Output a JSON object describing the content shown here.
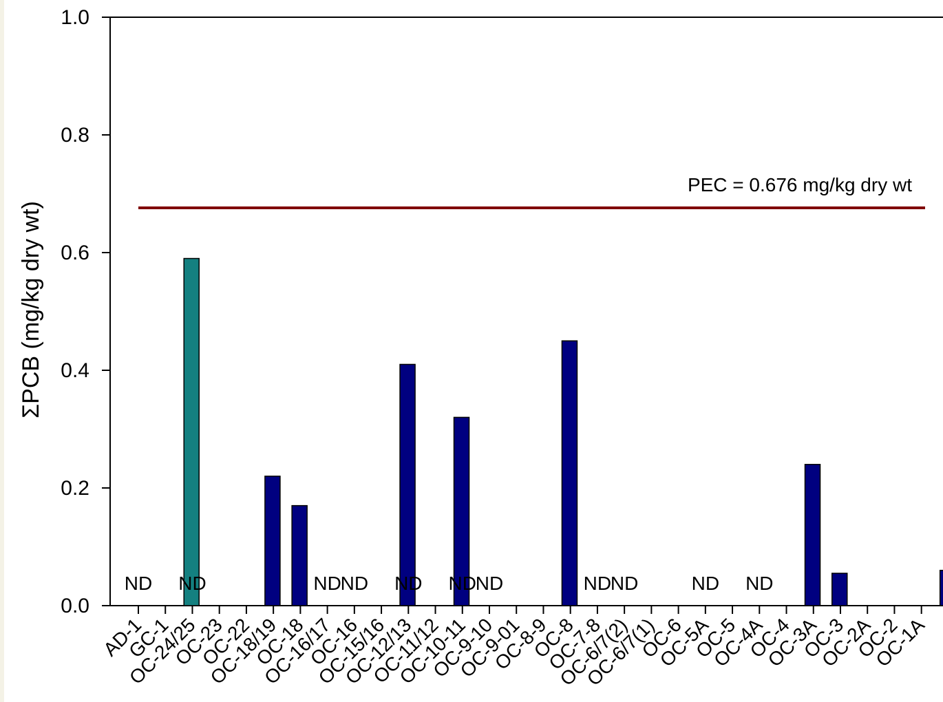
{
  "chart_data": {
    "type": "bar",
    "ylabel": "ΣPCB (mg/kg dry wt)",
    "ylim": [
      0,
      1.0
    ],
    "yticks": [
      "0.0",
      "0.2",
      "0.4",
      "0.6",
      "0.8",
      "1.0"
    ],
    "categories": [
      "AD-1",
      "GC-1",
      "OC-24/25",
      "OC-23",
      "OC-22",
      "OC-18/19",
      "OC-18",
      "OC-16/17",
      "OC-16",
      "OC-15/16",
      "OC-12/13",
      "OC-11/12",
      "OC-10-11",
      "OC-9-10",
      "OC-9-01",
      "OC-8-9",
      "OC-8",
      "OC-7-8",
      "OC-6/7(2)",
      "OC-6/7(1)",
      "OC-6",
      "OC-5A",
      "OC-5",
      "OC-4A",
      "OC-4",
      "OC-3A",
      "OC-3",
      "OC-2A",
      "OC-2",
      "OC-1A"
    ],
    "bars": [
      {
        "category": "GC-1",
        "value": 0.59,
        "color": "#148080"
      },
      {
        "category": "OC-22",
        "value": 0.22,
        "color": "#000080"
      },
      {
        "category": "OC-18/19",
        "value": 0.17,
        "color": "#000080"
      },
      {
        "category": "OC-15/16",
        "value": 0.41,
        "color": "#000080"
      },
      {
        "category": "OC-11/12",
        "value": 0.32,
        "color": "#000080"
      },
      {
        "category": "OC-8-9",
        "value": 0.45,
        "color": "#000080"
      },
      {
        "category": "OC-4",
        "value": 0.24,
        "color": "#000080"
      },
      {
        "category": "OC-3A",
        "value": 0.055,
        "color": "#000080"
      },
      {
        "category": "OC-1A",
        "value": 0.06,
        "color": "#000080"
      }
    ],
    "nd_categories": [
      "AD-1",
      "OC-24/25",
      "OC-16/17",
      "OC-16",
      "OC-12/13",
      "OC-10-11",
      "OC-9-10",
      "OC-7-8",
      "OC-6/7(2)",
      "OC-5A",
      "OC-4A"
    ],
    "nd_label": "ND",
    "reference_line": {
      "value": 0.676,
      "label": "PEC = 0.676 mg/kg dry wt",
      "color": "#800000"
    },
    "grid": false,
    "legend": "none"
  }
}
